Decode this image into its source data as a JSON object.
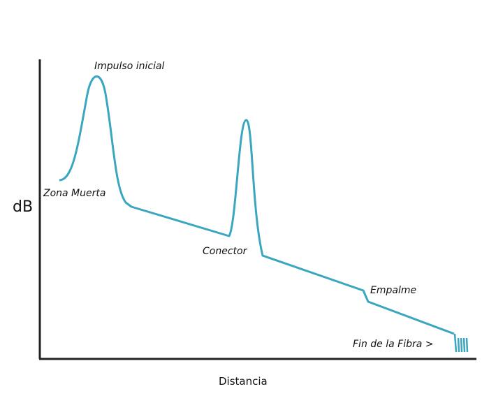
{
  "axes": {
    "y_label": "dB",
    "x_label": "Distancia"
  },
  "annotations": {
    "initial_pulse": "Impulso inicial",
    "dead_zone": "Zona Muerta",
    "connector": "Conector",
    "splice": "Empalme",
    "fiber_end": "Fin de la Fibra >"
  }
}
